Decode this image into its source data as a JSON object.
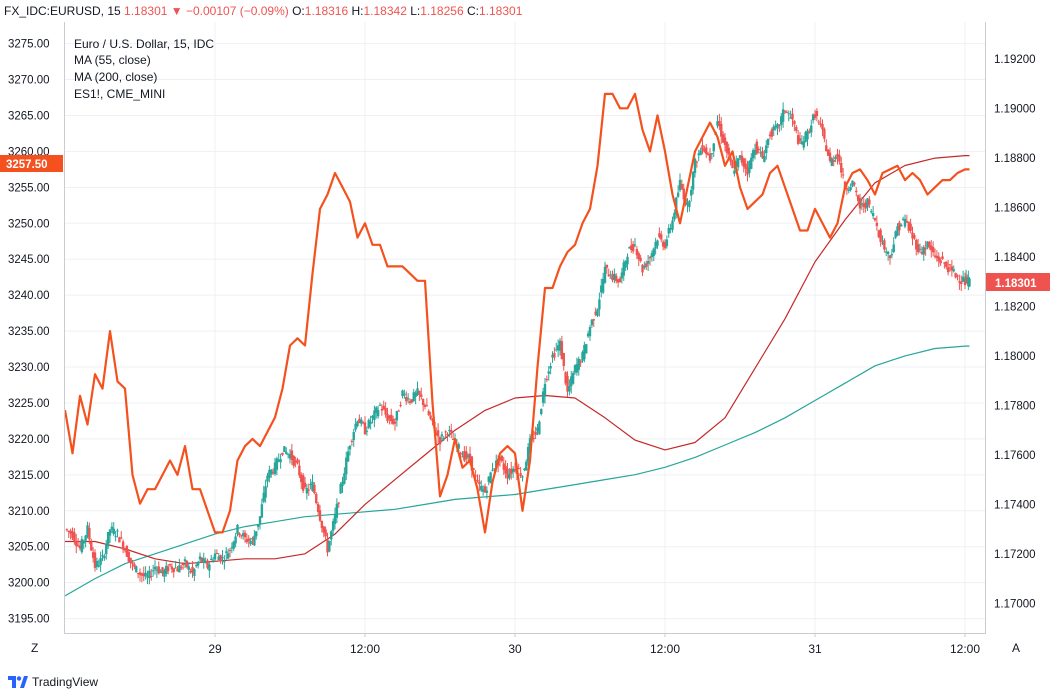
{
  "header": {
    "symbol": "FX_IDC:EURUSD, 15",
    "last": "1.18301",
    "change": "▼ −0.00107 (−0.09%)",
    "o_label": "O:",
    "o_value": "1.18316",
    "h_label": "H:",
    "h_value": "1.18342",
    "l_label": "L:",
    "l_value": "1.18256",
    "c_label": "C:",
    "c_value": "1.18301"
  },
  "legend": {
    "line1": "Euro / U.S. Dollar, 15, IDC",
    "line2": "MA (55, close)",
    "line3": "MA (200, close)",
    "line4": "ES1!, CME_MINI"
  },
  "badges": {
    "left": "3257.50",
    "right": "1.18301"
  },
  "axis_buttons": {
    "left": "Z",
    "right": "A"
  },
  "footer": {
    "brand": "TradingView"
  },
  "colors": {
    "up": "#26a69a",
    "down": "#ef5350",
    "es": "#f4511e",
    "ma55": "#c62828",
    "ma200": "#26a69a",
    "grid": "#eef0f3"
  },
  "chart_data": {
    "type": "line",
    "left_axis": {
      "label": "ES1!, CME_MINI",
      "ylim": [
        3193,
        3278
      ],
      "ticks": [
        "3195.00",
        "3200.00",
        "3205.00",
        "3210.00",
        "3215.00",
        "3220.00",
        "3225.00",
        "3230.00",
        "3235.00",
        "3240.00",
        "3245.00",
        "3250.00",
        "3255.00",
        "3260.00",
        "3265.00",
        "3270.00",
        "3275.00"
      ]
    },
    "right_axis": {
      "label": "EURUSD",
      "ylim": [
        1.1688,
        1.1935
      ],
      "ticks": [
        "1.17000",
        "1.17200",
        "1.17400",
        "1.17600",
        "1.17800",
        "1.18000",
        "1.18200",
        "1.18400",
        "1.18600",
        "1.18800",
        "1.19000",
        "1.19200"
      ]
    },
    "x_ticks": [
      "29",
      "12:00",
      "30",
      "12:00",
      "31",
      "12:00"
    ],
    "x_tick_pos": [
      1,
      2,
      3,
      4,
      5,
      6
    ],
    "xlim": [
      0,
      6.1
    ],
    "grid": true,
    "series": [
      {
        "name": "ES1!, CME_MINI",
        "axis": "left",
        "x": [
          0.0,
          0.05,
          0.1,
          0.15,
          0.2,
          0.25,
          0.3,
          0.35,
          0.4,
          0.45,
          0.5,
          0.55,
          0.6,
          0.65,
          0.7,
          0.75,
          0.8,
          0.85,
          0.9,
          0.95,
          1.0,
          1.05,
          1.1,
          1.15,
          1.2,
          1.25,
          1.3,
          1.35,
          1.4,
          1.45,
          1.5,
          1.55,
          1.6,
          1.65,
          1.7,
          1.75,
          1.8,
          1.85,
          1.9,
          1.95,
          2.0,
          2.05,
          2.1,
          2.15,
          2.2,
          2.25,
          2.3,
          2.35,
          2.4,
          2.45,
          2.5,
          2.55,
          2.6,
          2.65,
          2.7,
          2.75,
          2.8,
          2.85,
          2.9,
          2.95,
          3.0,
          3.05,
          3.1,
          3.15,
          3.2,
          3.25,
          3.3,
          3.35,
          3.4,
          3.45,
          3.5,
          3.55,
          3.6,
          3.65,
          3.7,
          3.75,
          3.8,
          3.85,
          3.9,
          3.95,
          4.0,
          4.05,
          4.1,
          4.15,
          4.2,
          4.25,
          4.3,
          4.35,
          4.4,
          4.45,
          4.5,
          4.55,
          4.6,
          4.65,
          4.7,
          4.75,
          4.8,
          4.85,
          4.9,
          4.95,
          5.0,
          5.05,
          5.1,
          5.15,
          5.2,
          5.25,
          5.3,
          5.35,
          5.4,
          5.45,
          5.5,
          5.55,
          5.6,
          5.65,
          5.7,
          5.75,
          5.8,
          5.85,
          5.9,
          5.95,
          6.0,
          6.03
        ],
        "values": [
          3224,
          3218,
          3226,
          3222,
          3229,
          3227,
          3235,
          3228,
          3227,
          3215,
          3211,
          3213,
          3213,
          3215,
          3217,
          3215,
          3219,
          3213,
          3213,
          3210,
          3207,
          3207,
          3210,
          3217,
          3219,
          3220,
          3219,
          3221,
          3223,
          3227,
          3233,
          3234,
          3233,
          3243,
          3252,
          3254,
          3257,
          3255,
          3253,
          3248,
          3250,
          3247,
          3247,
          3244,
          3244,
          3244,
          3243,
          3242,
          3242,
          3225,
          3212,
          3215,
          3220,
          3216,
          3217,
          3213,
          3207,
          3214,
          3218,
          3219,
          3218,
          3210,
          3217,
          3230,
          3241,
          3241,
          3244,
          3246,
          3247,
          3250,
          3252,
          3258,
          3268,
          3268,
          3266,
          3266,
          3268,
          3263,
          3260,
          3265,
          3260,
          3254,
          3250,
          3255,
          3260,
          3262,
          3264,
          3262,
          3258,
          3260,
          3255,
          3252,
          3253,
          3254,
          3257,
          3258,
          3255,
          3252,
          3249,
          3249,
          3252,
          3250,
          3248,
          3250,
          3255,
          3257,
          3257.5,
          3256,
          3254,
          3257,
          3257.5,
          3258,
          3256,
          3257,
          3256,
          3254,
          3255,
          3256,
          3256,
          3257,
          3257.5,
          3257.5
        ]
      },
      {
        "name": "Euro / U.S. Dollar, 15, IDC",
        "axis": "right",
        "x": [
          0.0,
          0.05,
          0.1,
          0.15,
          0.2,
          0.25,
          0.3,
          0.35,
          0.4,
          0.45,
          0.5,
          0.55,
          0.6,
          0.65,
          0.7,
          0.75,
          0.8,
          0.85,
          0.9,
          0.95,
          1.0,
          1.05,
          1.1,
          1.15,
          1.2,
          1.25,
          1.3,
          1.35,
          1.4,
          1.45,
          1.5,
          1.55,
          1.6,
          1.65,
          1.7,
          1.75,
          1.8,
          1.85,
          1.9,
          1.95,
          2.0,
          2.05,
          2.1,
          2.15,
          2.2,
          2.25,
          2.3,
          2.35,
          2.4,
          2.45,
          2.5,
          2.55,
          2.6,
          2.65,
          2.7,
          2.75,
          2.8,
          2.85,
          2.9,
          2.95,
          3.0,
          3.05,
          3.1,
          3.15,
          3.2,
          3.25,
          3.3,
          3.35,
          3.4,
          3.45,
          3.5,
          3.55,
          3.6,
          3.65,
          3.7,
          3.75,
          3.8,
          3.85,
          3.9,
          3.95,
          4.0,
          4.05,
          4.1,
          4.15,
          4.2,
          4.25,
          4.3,
          4.35,
          4.4,
          4.45,
          4.5,
          4.55,
          4.6,
          4.65,
          4.7,
          4.75,
          4.8,
          4.85,
          4.9,
          4.95,
          5.0,
          5.05,
          5.1,
          5.15,
          5.2,
          5.25,
          5.3,
          5.35,
          5.4,
          5.45,
          5.5,
          5.55,
          5.6,
          5.65,
          5.7,
          5.75,
          5.8,
          5.85,
          5.9,
          5.95,
          6.0,
          6.03
        ],
        "values": [
          1.173,
          1.1728,
          1.1722,
          1.173,
          1.1715,
          1.1718,
          1.173,
          1.1728,
          1.1722,
          1.1715,
          1.1712,
          1.171,
          1.1715,
          1.1712,
          1.1715,
          1.1714,
          1.1716,
          1.1712,
          1.1718,
          1.1715,
          1.172,
          1.1718,
          1.1722,
          1.173,
          1.1726,
          1.1725,
          1.1735,
          1.1752,
          1.1755,
          1.1762,
          1.176,
          1.1755,
          1.1745,
          1.1748,
          1.1735,
          1.1722,
          1.1735,
          1.175,
          1.1765,
          1.1775,
          1.177,
          1.1775,
          1.178,
          1.1775,
          1.1773,
          1.1785,
          1.1782,
          1.1785,
          1.178,
          1.1772,
          1.1766,
          1.177,
          1.1765,
          1.176,
          1.1758,
          1.1748,
          1.1745,
          1.1755,
          1.1758,
          1.1752,
          1.1755,
          1.1752,
          1.1765,
          1.177,
          1.179,
          1.18,
          1.1805,
          1.1785,
          1.1795,
          1.18,
          1.1812,
          1.182,
          1.1835,
          1.1832,
          1.183,
          1.1842,
          1.1845,
          1.1835,
          1.184,
          1.1848,
          1.1845,
          1.1855,
          1.187,
          1.186,
          1.1878,
          1.1885,
          1.188,
          1.1895,
          1.1885,
          1.1875,
          1.188,
          1.1875,
          1.1885,
          1.188,
          1.189,
          1.1892,
          1.19,
          1.1895,
          1.1885,
          1.189,
          1.1898,
          1.189,
          1.1878,
          1.1882,
          1.1868,
          1.187,
          1.186,
          1.1862,
          1.1855,
          1.1845,
          1.184,
          1.1852,
          1.1855,
          1.1848,
          1.1842,
          1.1845,
          1.184,
          1.1838,
          1.1835,
          1.1832,
          1.183,
          1.18301
        ]
      },
      {
        "name": "MA (55, close)",
        "axis": "right",
        "x": [
          0.0,
          0.2,
          0.4,
          0.6,
          0.8,
          1.0,
          1.2,
          1.4,
          1.6,
          1.8,
          2.0,
          2.2,
          2.4,
          2.6,
          2.8,
          3.0,
          3.2,
          3.4,
          3.6,
          3.8,
          4.0,
          4.2,
          4.4,
          4.6,
          4.8,
          5.0,
          5.2,
          5.4,
          5.6,
          5.8,
          6.0,
          6.03
        ],
        "values": [
          1.1725,
          1.1725,
          1.1722,
          1.1718,
          1.1716,
          1.1717,
          1.1718,
          1.1718,
          1.172,
          1.1728,
          1.174,
          1.175,
          1.176,
          1.177,
          1.1778,
          1.1783,
          1.1784,
          1.1783,
          1.1775,
          1.1766,
          1.1762,
          1.1765,
          1.1775,
          1.1795,
          1.1815,
          1.1838,
          1.1855,
          1.187,
          1.1877,
          1.188,
          1.1881,
          1.1881
        ]
      },
      {
        "name": "MA (200, close)",
        "axis": "right",
        "x": [
          0.0,
          0.2,
          0.4,
          0.6,
          0.8,
          1.0,
          1.2,
          1.4,
          1.6,
          1.8,
          2.0,
          2.2,
          2.4,
          2.6,
          2.8,
          3.0,
          3.2,
          3.4,
          3.6,
          3.8,
          4.0,
          4.2,
          4.4,
          4.6,
          4.8,
          5.0,
          5.2,
          5.4,
          5.6,
          5.8,
          6.0,
          6.03
        ],
        "values": [
          1.1703,
          1.171,
          1.1716,
          1.172,
          1.1724,
          1.1728,
          1.1731,
          1.1733,
          1.1735,
          1.1736,
          1.1737,
          1.1738,
          1.174,
          1.1742,
          1.1743,
          1.1744,
          1.1746,
          1.1748,
          1.175,
          1.1752,
          1.1755,
          1.1759,
          1.1764,
          1.1769,
          1.1775,
          1.1782,
          1.1789,
          1.1796,
          1.18,
          1.1803,
          1.1804,
          1.1804
        ]
      }
    ]
  }
}
